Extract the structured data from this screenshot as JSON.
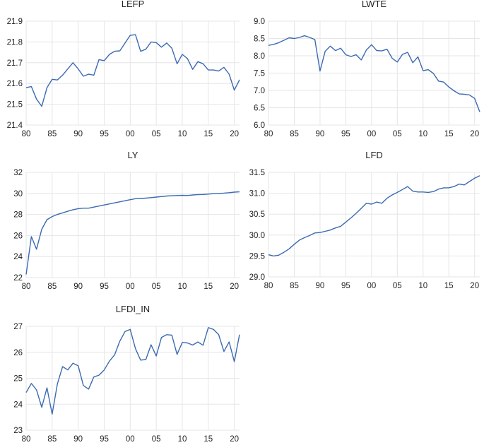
{
  "colors": {
    "line": "#3b6ab3",
    "grid": "#e6e6e6",
    "text": "#222222"
  },
  "chart_data": [
    {
      "type": "line",
      "title": "LEFP",
      "xlabel": "",
      "ylabel": "",
      "xlim": [
        80,
        121
      ],
      "ylim": [
        21.4,
        21.9
      ],
      "grid": true,
      "y_ticks": [
        "21.4",
        "21.5",
        "21.6",
        "21.7",
        "21.8",
        "21.9"
      ],
      "x_ticks": [
        "80",
        "85",
        "90",
        "95",
        "00",
        "05",
        "10",
        "15",
        "20"
      ],
      "x": [
        80,
        81,
        82,
        83,
        84,
        85,
        86,
        87,
        88,
        89,
        90,
        91,
        92,
        93,
        94,
        95,
        96,
        97,
        98,
        99,
        100,
        101,
        102,
        103,
        104,
        105,
        106,
        107,
        108,
        109,
        110,
        111,
        112,
        113,
        114,
        115,
        116,
        117,
        118,
        119,
        120,
        121
      ],
      "series": [
        {
          "values": [
            21.58,
            21.585,
            21.525,
            21.49,
            21.58,
            21.62,
            21.617,
            21.64,
            21.67,
            21.7,
            21.67,
            21.635,
            21.645,
            21.64,
            21.715,
            21.71,
            21.74,
            21.755,
            21.757,
            21.795,
            21.832,
            21.835,
            21.755,
            21.765,
            21.8,
            21.797,
            21.775,
            21.795,
            21.77,
            21.695,
            21.74,
            21.72,
            21.668,
            21.705,
            21.695,
            21.665,
            21.665,
            21.66,
            21.678,
            21.645,
            21.568,
            21.618
          ]
        }
      ]
    },
    {
      "type": "line",
      "title": "LWTE",
      "xlabel": "",
      "ylabel": "",
      "xlim": [
        80,
        121
      ],
      "ylim": [
        6.0,
        9.0
      ],
      "grid": true,
      "y_ticks": [
        "6.0",
        "6.5",
        "7.0",
        "7.5",
        "8.0",
        "8.5",
        "9.0"
      ],
      "x_ticks": [
        "80",
        "85",
        "90",
        "95",
        "00",
        "05",
        "10",
        "15",
        "20"
      ],
      "x": [
        80,
        81,
        82,
        83,
        84,
        85,
        86,
        87,
        88,
        89,
        90,
        91,
        92,
        93,
        94,
        95,
        96,
        97,
        98,
        99,
        100,
        101,
        102,
        103,
        104,
        105,
        106,
        107,
        108,
        109,
        110,
        111,
        112,
        113,
        114,
        115,
        116,
        117,
        118,
        119,
        120,
        121
      ],
      "series": [
        {
          "values": [
            8.3,
            8.33,
            8.38,
            8.45,
            8.52,
            8.5,
            8.53,
            8.58,
            8.53,
            8.47,
            7.56,
            8.13,
            8.28,
            8.15,
            8.22,
            8.03,
            7.98,
            8.03,
            7.88,
            8.17,
            8.32,
            8.15,
            8.14,
            8.19,
            7.93,
            7.82,
            8.04,
            8.1,
            7.8,
            7.97,
            7.57,
            7.6,
            7.49,
            7.27,
            7.24,
            7.1,
            6.99,
            6.9,
            6.89,
            6.87,
            6.77,
            6.38
          ]
        }
      ]
    },
    {
      "type": "line",
      "title": "LY",
      "xlabel": "",
      "ylabel": "",
      "xlim": [
        80,
        121
      ],
      "ylim": [
        22,
        32
      ],
      "grid": true,
      "y_ticks": [
        "22",
        "24",
        "26",
        "28",
        "30",
        "32"
      ],
      "x_ticks": [
        "80",
        "85",
        "90",
        "95",
        "00",
        "05",
        "10",
        "15",
        "20"
      ],
      "x": [
        80,
        81,
        82,
        83,
        84,
        85,
        86,
        87,
        88,
        89,
        90,
        91,
        92,
        93,
        94,
        95,
        96,
        97,
        98,
        99,
        100,
        101,
        102,
        103,
        104,
        105,
        106,
        107,
        108,
        109,
        110,
        111,
        112,
        113,
        114,
        115,
        116,
        117,
        118,
        119,
        120,
        121
      ],
      "series": [
        {
          "values": [
            22.3,
            25.9,
            24.7,
            26.6,
            27.5,
            27.8,
            28.0,
            28.15,
            28.3,
            28.45,
            28.55,
            28.6,
            28.6,
            28.7,
            28.8,
            28.9,
            29.0,
            29.1,
            29.2,
            29.3,
            29.4,
            29.5,
            29.52,
            29.55,
            29.6,
            29.65,
            29.7,
            29.75,
            29.78,
            29.8,
            29.82,
            29.8,
            29.85,
            29.88,
            29.9,
            29.93,
            29.97,
            30.0,
            30.03,
            30.07,
            30.12,
            30.15
          ]
        }
      ]
    },
    {
      "type": "line",
      "title": "LFD",
      "xlabel": "",
      "ylabel": "",
      "xlim": [
        80,
        121
      ],
      "ylim": [
        29.0,
        31.5
      ],
      "grid": true,
      "y_ticks": [
        "29.0",
        "29.5",
        "30.0",
        "30.5",
        "31.0",
        "31.5"
      ],
      "x_ticks": [
        "80",
        "85",
        "90",
        "95",
        "00",
        "05",
        "10",
        "15",
        "20"
      ],
      "x": [
        80,
        81,
        82,
        83,
        84,
        85,
        86,
        87,
        88,
        89,
        90,
        91,
        92,
        93,
        94,
        95,
        96,
        97,
        98,
        99,
        100,
        101,
        102,
        103,
        104,
        105,
        106,
        107,
        108,
        109,
        110,
        111,
        112,
        113,
        114,
        115,
        116,
        117,
        118,
        119,
        120,
        121
      ],
      "series": [
        {
          "values": [
            29.53,
            29.5,
            29.52,
            29.59,
            29.67,
            29.78,
            29.88,
            29.94,
            29.99,
            30.05,
            30.06,
            30.09,
            30.12,
            30.17,
            30.21,
            30.31,
            30.41,
            30.52,
            30.64,
            30.76,
            30.74,
            30.79,
            30.76,
            30.88,
            30.96,
            31.02,
            31.09,
            31.16,
            31.05,
            31.03,
            31.03,
            31.02,
            31.04,
            31.1,
            31.13,
            31.13,
            31.16,
            31.22,
            31.2,
            31.28,
            31.36,
            31.42
          ]
        }
      ]
    },
    {
      "type": "line",
      "title": "LFDI_IN",
      "xlabel": "",
      "ylabel": "",
      "xlim": [
        80,
        121
      ],
      "ylim": [
        23,
        27
      ],
      "grid": true,
      "y_ticks": [
        "23",
        "24",
        "25",
        "26",
        "27"
      ],
      "x_ticks": [
        "80",
        "85",
        "90",
        "95",
        "00",
        "05",
        "10",
        "15",
        "20"
      ],
      "x": [
        80,
        81,
        82,
        83,
        84,
        85,
        86,
        87,
        88,
        89,
        90,
        91,
        92,
        93,
        94,
        95,
        96,
        97,
        98,
        99,
        100,
        101,
        102,
        103,
        104,
        105,
        106,
        107,
        108,
        109,
        110,
        111,
        112,
        113,
        114,
        115,
        116,
        117,
        118,
        119,
        120,
        121
      ],
      "series": [
        {
          "values": [
            24.45,
            24.8,
            24.55,
            23.88,
            24.63,
            23.62,
            24.78,
            25.45,
            25.32,
            25.58,
            25.48,
            24.72,
            24.58,
            25.05,
            25.12,
            25.32,
            25.66,
            25.9,
            26.43,
            26.8,
            26.88,
            26.14,
            25.7,
            25.72,
            26.29,
            25.86,
            26.57,
            26.68,
            26.66,
            25.92,
            26.38,
            26.36,
            26.28,
            26.4,
            26.27,
            26.95,
            26.88,
            26.68,
            26.03,
            26.4,
            25.64,
            26.68
          ]
        }
      ]
    }
  ]
}
